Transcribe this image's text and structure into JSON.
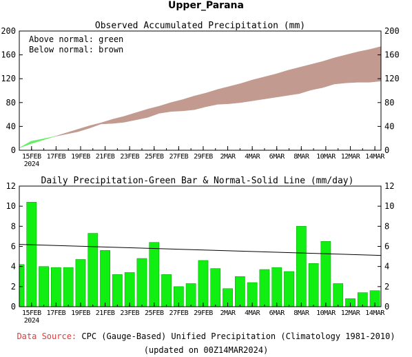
{
  "page_title": "Upper_Parana",
  "footer": {
    "source_label": "Data Source:",
    "source_text": "CPC (Gauge-Based) Unified Precipitation (Climatology 1981-2010)",
    "updated_text": "(updated on 00Z14MAR2024)"
  },
  "chart_data": [
    {
      "type": "area",
      "title": "Observed Accumulated Precipitation (mm)",
      "legend_lines": [
        "Above normal: green",
        "Below normal: brown"
      ],
      "legend_position": "top-left",
      "ylim": [
        0,
        200
      ],
      "yticks": [
        0,
        40,
        80,
        120,
        160,
        200
      ],
      "x_tick_labels": [
        "15FEB",
        "17FEB",
        "19FEB",
        "21FEB",
        "23FEB",
        "25FEB",
        "27FEB",
        "29FEB",
        "2MAR",
        "4MAR",
        "6MAR",
        "8MAR",
        "10MAR",
        "12MAR",
        "14MAR"
      ],
      "x_year_label": "2024",
      "colors": {
        "above": "#66ee66",
        "below": "#c29a90"
      },
      "series": [
        {
          "name": "Observed",
          "values": [
            4,
            15,
            19,
            23,
            27,
            31,
            37,
            44,
            45,
            47,
            51,
            55,
            62,
            65,
            66,
            68,
            73,
            77,
            78,
            80,
            83,
            86,
            89,
            92,
            95,
            101,
            105,
            111,
            113,
            114,
            114,
            116
          ]
        },
        {
          "name": "Normal",
          "values": [
            4,
            11,
            17,
            23,
            29,
            35,
            41,
            46,
            52,
            57,
            63,
            69,
            74,
            80,
            85,
            91,
            96,
            102,
            107,
            112,
            118,
            123,
            128,
            134,
            139,
            144,
            149,
            155,
            160,
            165,
            169,
            174
          ]
        }
      ]
    },
    {
      "type": "bar",
      "title": "Daily Precipitation-Green Bar & Normal-Solid Line (mm/day)",
      "ylim": [
        0,
        12
      ],
      "yticks": [
        0,
        2,
        4,
        6,
        8,
        10,
        12
      ],
      "x_tick_labels": [
        "15FEB",
        "17FEB",
        "19FEB",
        "21FEB",
        "23FEB",
        "25FEB",
        "27FEB",
        "29FEB",
        "2MAR",
        "4MAR",
        "6MAR",
        "8MAR",
        "10MAR",
        "12MAR",
        "14MAR"
      ],
      "x_year_label": "2024",
      "colors": {
        "bar": "#11ee11",
        "bar_edge": "#009900",
        "line": "#000000"
      },
      "values": [
        4.2,
        10.4,
        4.0,
        3.9,
        3.9,
        4.7,
        7.3,
        5.6,
        3.2,
        3.4,
        4.8,
        6.4,
        3.2,
        2.0,
        2.3,
        4.6,
        3.8,
        1.8,
        3.0,
        2.4,
        3.7,
        3.9,
        3.5,
        8.0,
        4.3,
        6.5,
        2.3,
        0.8,
        1.4,
        1.6
      ],
      "normal_line": [
        6.2,
        5.1
      ]
    }
  ]
}
